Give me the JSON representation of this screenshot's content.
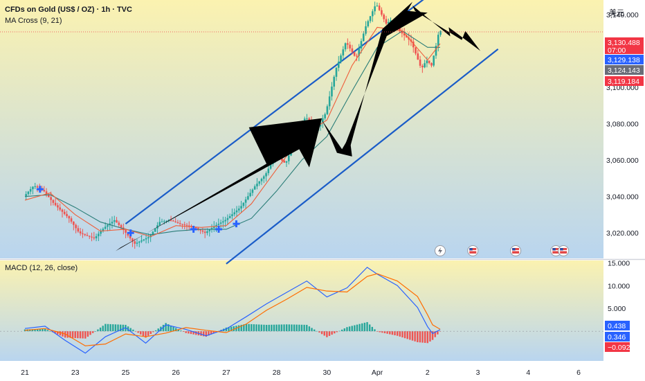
{
  "header": {
    "title": "CFDs on Gold (US$ / OZ) · 1h · TVC",
    "ma_label": "MA Cross (9, 21)",
    "currency": "美元"
  },
  "colors": {
    "bg_top": "#fbf2b0",
    "bg_bottom": "#b9d5ef",
    "price_up": "#26a69a",
    "price_down": "#ef5350",
    "ma_fast": "#ef5e3a",
    "ma_slow": "#2a7d78",
    "channel": "#1a5cc8",
    "macd_line": "#2962ff",
    "signal_line": "#ff6d00",
    "hist_up": "#26a69a",
    "hist_down": "#ef5350",
    "label_red": "#f23645",
    "label_blue": "#2962ff",
    "label_gray": "#6a6d78"
  },
  "chart_data": [
    {
      "type": "line",
      "name": "price-panel",
      "x_ticks": [
        "21",
        "23",
        "25",
        "26",
        "27",
        "28",
        "30",
        "Apr",
        "2",
        "3",
        "4",
        "6"
      ],
      "x_range": [
        0,
        11
      ],
      "y_ticks": [
        "3,020.000",
        "3,040.000",
        "3,060.000",
        "3,080.000",
        "3,100.000",
        "3,140.000"
      ],
      "y_tick_values": [
        3020,
        3040,
        3060,
        3080,
        3100,
        3140
      ],
      "ylim": [
        3006,
        3148
      ],
      "price_path": {
        "x": [
          0.0,
          0.2,
          0.4,
          0.6,
          0.9,
          1.1,
          1.4,
          1.6,
          1.8,
          2.0,
          2.2,
          2.5,
          2.7,
          2.9,
          3.1,
          3.4,
          3.6,
          3.8,
          4.0,
          4.3,
          4.6,
          4.8,
          5.0,
          5.2,
          5.4,
          5.6,
          5.8,
          6.0,
          6.2,
          6.4,
          6.6,
          6.8,
          7.0,
          7.2,
          7.3,
          7.5,
          7.7,
          7.9,
          8.0,
          8.1,
          8.2,
          8.25
        ],
        "y": [
          3040,
          3046,
          3043,
          3036,
          3028,
          3020,
          3017,
          3023,
          3027,
          3021,
          3014,
          3018,
          3026,
          3027,
          3025,
          3023,
          3020,
          3024,
          3027,
          3034,
          3046,
          3052,
          3063,
          3058,
          3072,
          3084,
          3076,
          3086,
          3110,
          3125,
          3116,
          3134,
          3146,
          3135,
          3137,
          3130,
          3125,
          3110,
          3115,
          3112,
          3124,
          3131
        ]
      },
      "ma_fast": {
        "x": [
          0.0,
          0.5,
          1.0,
          1.5,
          2.0,
          2.5,
          3.0,
          3.5,
          4.0,
          4.5,
          5.0,
          5.5,
          6.0,
          6.5,
          7.0,
          7.5,
          8.0,
          8.25
        ],
        "y": [
          3038,
          3042,
          3030,
          3021,
          3022,
          3018,
          3024,
          3023,
          3024,
          3036,
          3055,
          3073,
          3082,
          3112,
          3133,
          3131,
          3115,
          3124
        ]
      },
      "ma_slow": {
        "x": [
          0.0,
          0.5,
          1.0,
          1.5,
          2.0,
          2.5,
          3.0,
          3.5,
          4.0,
          4.5,
          5.0,
          5.5,
          6.0,
          6.5,
          7.0,
          7.5,
          8.0,
          8.25
        ],
        "y": [
          3040,
          3041,
          3034,
          3026,
          3022,
          3019,
          3021,
          3022,
          3022,
          3028,
          3043,
          3060,
          3073,
          3098,
          3122,
          3131,
          3122,
          3122
        ]
      },
      "channel_upper": {
        "x": [
          2.0,
          8.0
        ],
        "y": [
          3025,
          3150
        ]
      },
      "channel_lower": {
        "x": [
          4.0,
          9.4
        ],
        "y": [
          3003,
          3121
        ]
      },
      "price_labels": [
        {
          "value": 3130.488,
          "text": "3,130.488",
          "sub": "07:00",
          "color": "label_red"
        },
        {
          "value": 3129.138,
          "text": "3,129.138",
          "color": "label_blue"
        },
        {
          "value": 3124.143,
          "text": "3,124.143",
          "color": "label_gray"
        },
        {
          "value": 3119.184,
          "text": "3,119.184",
          "color": "label_red"
        }
      ],
      "current_price": 3130.488
    },
    {
      "type": "bar",
      "name": "macd-panel",
      "title": "MACD (12, 26, close)",
      "y_ticks": [
        "15.000",
        "10.000",
        "5.000"
      ],
      "y_tick_values": [
        15,
        10,
        5
      ],
      "ylim": [
        -6.5,
        15.5
      ],
      "macd": {
        "x": [
          0.0,
          0.4,
          0.8,
          1.2,
          1.6,
          2.0,
          2.4,
          2.8,
          3.2,
          3.6,
          4.0,
          4.4,
          4.8,
          5.2,
          5.6,
          6.0,
          6.4,
          6.8,
          7.0,
          7.4,
          7.8,
          8.0,
          8.1,
          8.25
        ],
        "y": [
          0.6,
          1.1,
          -2.0,
          -4.8,
          -1.2,
          0.8,
          -2.6,
          1.4,
          0.4,
          -1.0,
          0.5,
          3.2,
          6.0,
          8.5,
          11.0,
          7.5,
          9.5,
          14.0,
          12.5,
          10.0,
          5.2,
          1.0,
          -0.5,
          0.346
        ]
      },
      "signal": {
        "x": [
          0.0,
          0.4,
          0.8,
          1.2,
          1.6,
          2.0,
          2.4,
          2.8,
          3.2,
          3.6,
          4.0,
          4.4,
          4.8,
          5.2,
          5.6,
          6.0,
          6.4,
          6.8,
          7.0,
          7.4,
          7.8,
          8.0,
          8.1,
          8.25
        ],
        "y": [
          0.2,
          0.6,
          -0.6,
          -3.2,
          -2.8,
          -0.6,
          -1.2,
          -0.4,
          0.8,
          0.2,
          -0.3,
          1.6,
          4.6,
          7.0,
          9.6,
          8.8,
          8.6,
          12.0,
          12.6,
          11.0,
          7.6,
          3.6,
          1.4,
          0.438
        ]
      },
      "histogram_x_range": [
        0.0,
        8.25
      ],
      "histogram_step": 0.05,
      "value_labels": [
        {
          "value": 0.438,
          "text": "0.438",
          "color": "label_blue"
        },
        {
          "value": 0.346,
          "text": "0.346",
          "color": "label_blue"
        },
        {
          "value": -0.092,
          "text": "−0.092",
          "color": "label_red"
        }
      ]
    }
  ]
}
